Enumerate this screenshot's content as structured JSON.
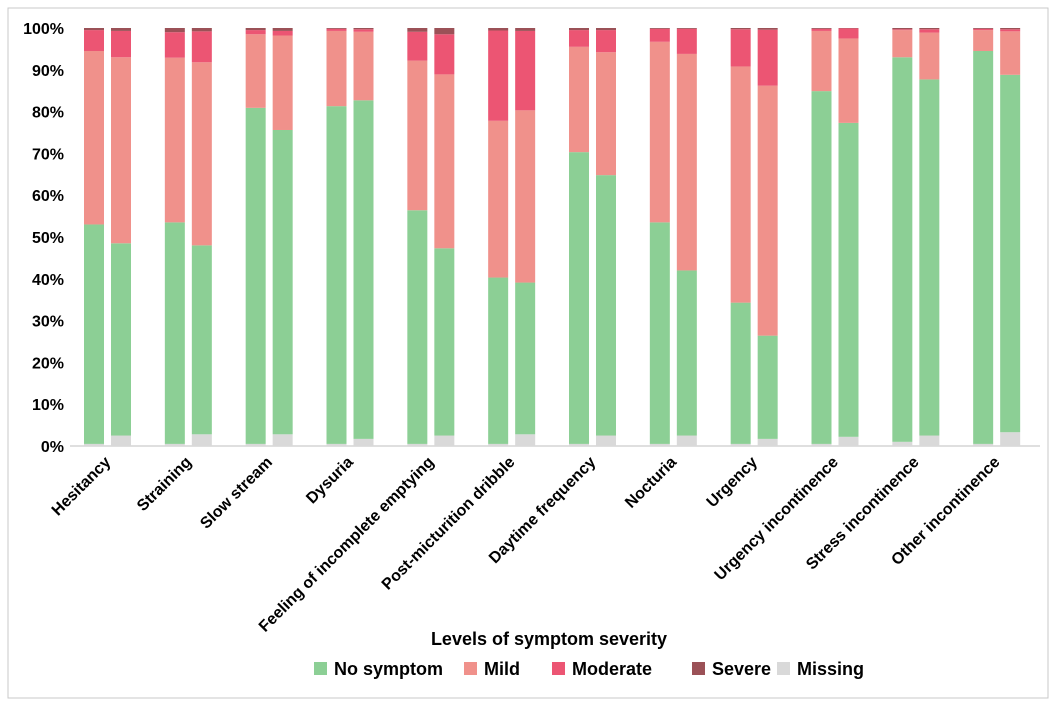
{
  "chart_data": {
    "type": "bar",
    "stacked": true,
    "percent_stacked": true,
    "bars_per_category": 2,
    "title": "",
    "xlabel": "Levels of symptom severity",
    "ylabel": "",
    "ylim": [
      0,
      100
    ],
    "y_ticks": [
      "0%",
      "10%",
      "20%",
      "30%",
      "40%",
      "50%",
      "60%",
      "70%",
      "80%",
      "90%",
      "100%"
    ],
    "grid": false,
    "legend_position": "bottom",
    "categories": [
      "Hesitancy",
      "Straining",
      "Slow stream",
      "Dysuria",
      "Feeling of incomplete emptying",
      "Post-micturition dribble",
      "Daytime frequency",
      "Nocturia",
      "Urgency",
      "Urgency incontinence",
      "Stress incontinence",
      "Other incontinence"
    ],
    "series": [
      {
        "name": "Missing",
        "color": "#d9d9d9",
        "values": [
          [
            0.5,
            2.5
          ],
          [
            0.5,
            2.8
          ],
          [
            0.5,
            2.8
          ],
          [
            0.5,
            1.7
          ],
          [
            0.5,
            2.5
          ],
          [
            0.5,
            2.8
          ],
          [
            0.5,
            2.5
          ],
          [
            0.5,
            2.5
          ],
          [
            0.5,
            1.7
          ],
          [
            0.5,
            2.2
          ],
          [
            1.0,
            2.5
          ],
          [
            0.5,
            3.3
          ]
        ]
      },
      {
        "name": "No symptom",
        "color": "#8ccf95",
        "values": [
          [
            52.5,
            46.0
          ],
          [
            53.0,
            45.2
          ],
          [
            80.4,
            72.8
          ],
          [
            80.8,
            81.0
          ],
          [
            55.9,
            44.8
          ],
          [
            39.8,
            36.3
          ],
          [
            69.8,
            62.3
          ],
          [
            53.0,
            39.5
          ],
          [
            33.8,
            24.7
          ],
          [
            84.4,
            75.1
          ],
          [
            92.0,
            85.2
          ],
          [
            94.0,
            85.5
          ]
        ]
      },
      {
        "name": "Mild",
        "color": "#f0918b",
        "values": [
          [
            41.5,
            44.5
          ],
          [
            39.4,
            43.8
          ],
          [
            17.6,
            22.6
          ],
          [
            18.0,
            16.4
          ],
          [
            35.8,
            41.6
          ],
          [
            37.5,
            41.2
          ],
          [
            25.2,
            29.4
          ],
          [
            43.2,
            51.8
          ],
          [
            56.5,
            59.8
          ],
          [
            14.4,
            20.2
          ],
          [
            6.5,
            11.2
          ],
          [
            5.0,
            10.4
          ]
        ]
      },
      {
        "name": "Moderate",
        "color": "#ec5573",
        "values": [
          [
            5.0,
            6.3
          ],
          [
            6.1,
            7.4
          ],
          [
            1.0,
            1.1
          ],
          [
            0.5,
            0.6
          ],
          [
            6.9,
            9.6
          ],
          [
            21.6,
            19.0
          ],
          [
            4.0,
            5.3
          ],
          [
            3.1,
            6.0
          ],
          [
            8.9,
            13.4
          ],
          [
            0.5,
            2.4
          ],
          [
            0.2,
            0.8
          ],
          [
            0.3,
            0.5
          ]
        ]
      },
      {
        "name": "Severe",
        "color": "#9b5157",
        "values": [
          [
            0.5,
            0.7
          ],
          [
            1.0,
            0.8
          ],
          [
            0.5,
            0.7
          ],
          [
            0.2,
            0.3
          ],
          [
            0.9,
            1.5
          ],
          [
            0.6,
            0.7
          ],
          [
            0.5,
            0.5
          ],
          [
            0.2,
            0.2
          ],
          [
            0.3,
            0.4
          ],
          [
            0.2,
            0.1
          ],
          [
            0.3,
            0.3
          ],
          [
            0.2,
            0.3
          ]
        ]
      }
    ],
    "legend": [
      "No symptom",
      "Mild",
      "Moderate",
      "Severe",
      "Missing"
    ]
  },
  "colors": {
    "border": "#c9c9c9",
    "axis": "#bfbfbf",
    "text": "#000000"
  }
}
